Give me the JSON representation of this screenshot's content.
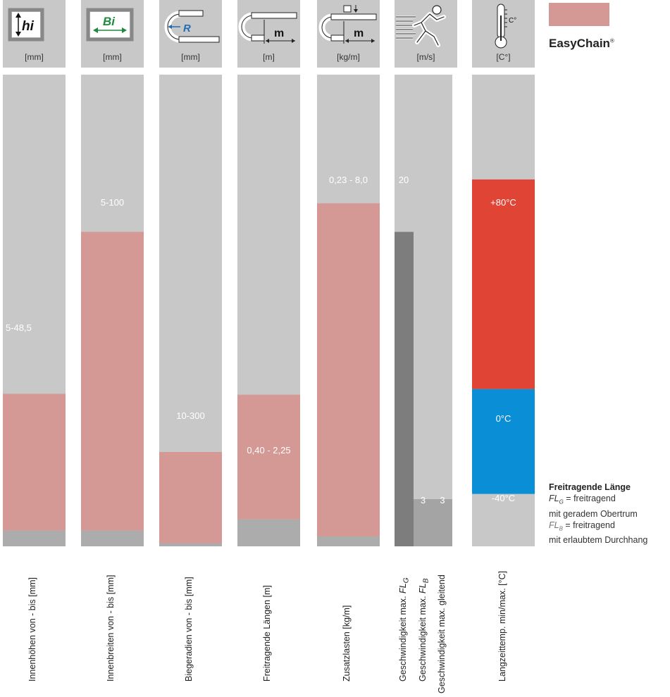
{
  "chart_data": {
    "type": "bar",
    "legend": {
      "label": "EasyChain",
      "mark": "®",
      "color": "#d49994"
    },
    "columns": [
      {
        "icon": "inner-height-icon",
        "icon_text": "hi",
        "unit": "[mm]",
        "label": "Innenhöhen von - bis [mm]",
        "range_label": "5-48,5",
        "min": 5,
        "max": 48.5,
        "scale_max": 150
      },
      {
        "icon": "inner-width-icon",
        "icon_text": "Bi",
        "unit": "[mm]",
        "label": "Innenbreiten von - bis [mm]",
        "range_label": "5-100",
        "min": 5,
        "max": 100,
        "scale_max": 150
      },
      {
        "icon": "bend-radius-icon",
        "icon_text": "R",
        "unit": "[mm]",
        "label": "Biegeradien von - bis [mm]",
        "range_label": "10-300",
        "min": 10,
        "max": 300,
        "scale_max": 1500
      },
      {
        "icon": "unsupported-length-icon",
        "icon_text": "m",
        "unit": "[m]",
        "label": "Freitragende Längen [m]",
        "range_label": "0,40 - 2,25",
        "min": 0.4,
        "max": 2.25,
        "scale_max": 7
      },
      {
        "icon": "additional-load-icon",
        "icon_text": "m",
        "unit": "[kg/m]",
        "label": "Zusatzlasten [kg/m]",
        "range_label": "0,23 - 8,0",
        "min": 0.23,
        "max": 8.0,
        "scale_max": 11
      }
    ],
    "speed": {
      "icon": "speed-runner-icon",
      "unit": "[m/s]",
      "series": [
        {
          "label_prefix": "Geschwindigkeit max. ",
          "label_var": "FL",
          "label_sub": "G",
          "value": 20,
          "value_label": "20"
        },
        {
          "label_prefix": "Geschwindigkeit max. ",
          "label_var": "FL",
          "label_sub": "B",
          "value": 3,
          "value_label": "3"
        },
        {
          "label_prefix": "Geschwindigkeit max. gleitend",
          "label_var": "",
          "label_sub": "",
          "value": 3,
          "value_label": "3"
        }
      ],
      "scale_max": 30
    },
    "temperature": {
      "icon": "thermometer-icon",
      "icon_text": "C°",
      "unit": "[C°]",
      "label": "Langzeittemp. min/max. [°C]",
      "max_label": "+80°C",
      "zero_label": "0°C",
      "min_label": "-40°C",
      "min": -40,
      "max": 80,
      "hot_color": "#e04434",
      "cold_color": "#0a8ed6"
    },
    "colors": {
      "track": "#c8c8c8",
      "range": "#d49994",
      "base": "#acacac",
      "speed_dark": "#7d7d7d",
      "speed_light": "#a4a4a4"
    }
  },
  "note": {
    "title": "Freitragende Länge",
    "fl_g_var": "FL",
    "fl_g_sub": "G",
    "fl_g_text": " = freitragend",
    "fl_g_line2": "mit geradem Obertrum",
    "fl_b_var": "FL",
    "fl_b_sub": "B",
    "fl_b_text": " = freitragend",
    "fl_b_line2": "mit erlaubtem Durchhang"
  }
}
